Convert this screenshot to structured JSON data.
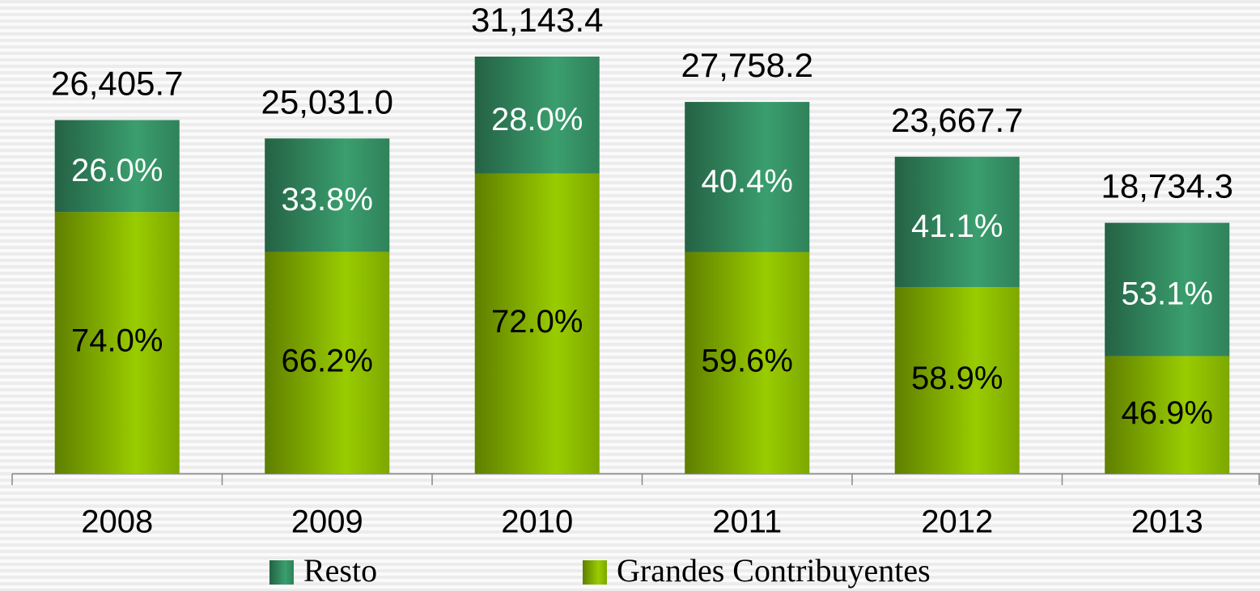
{
  "chart_data": {
    "type": "stacked_bar",
    "categories": [
      "2008",
      "2009",
      "2010",
      "2011",
      "2012",
      "2013"
    ],
    "series": [
      {
        "name": "Resto",
        "color": "#3a9e6e",
        "values": [
          26.0,
          33.8,
          28.0,
          40.4,
          41.1,
          53.1
        ],
        "value_labels": [
          "26.0%",
          "33.8%",
          "28.0%",
          "40.4%",
          "41.1%",
          "53.1%"
        ]
      },
      {
        "name": "Grandes Contribuyentes",
        "color": "#99cc00",
        "values": [
          74.0,
          66.2,
          72.0,
          59.6,
          58.9,
          46.9
        ],
        "value_labels": [
          "74.0%",
          "66.2%",
          "72.0%",
          "59.6%",
          "58.9%",
          "46.9%"
        ]
      }
    ],
    "totals": {
      "values": [
        26405.7,
        25031.0,
        31143.4,
        27758.2,
        23667.7,
        18734.3
      ],
      "value_labels": [
        "26,405.7",
        "25,031.0",
        "31,143.4",
        "27,758.2",
        "23,667.7",
        "18,734.3"
      ]
    }
  }
}
